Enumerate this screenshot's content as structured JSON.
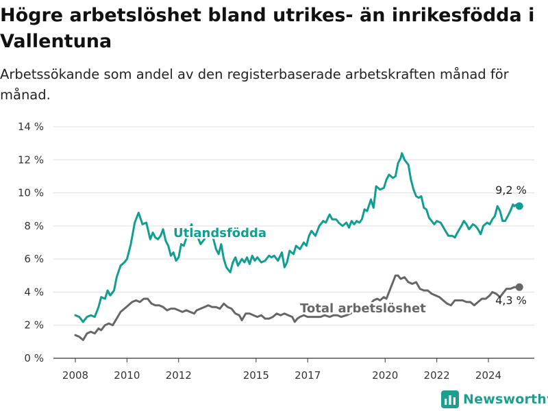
{
  "chart_data": {
    "type": "line",
    "title": "Högre arbetslöshet bland utrikes- än inrikesfödda i Vallentuna",
    "subtitle": "Arbetssökande som andel av den registerbaserade arbetskraften månad för månad.",
    "y_unit": "%",
    "ylim": [
      0,
      14
    ],
    "y_ticks": [
      0,
      2,
      4,
      6,
      8,
      10,
      12,
      14
    ],
    "y_tick_labels": [
      "0 %",
      "2 %",
      "4 %",
      "6 %",
      "8 %",
      "10 %",
      "12 %",
      "14 %"
    ],
    "x_range": [
      2007.5,
      2025.75
    ],
    "x_ticks": [
      2008,
      2010,
      2012,
      2015,
      2017,
      2020,
      2022,
      2024
    ],
    "x_tick_labels": [
      "2008",
      "2010",
      "2012",
      "2015",
      "2017",
      "2020",
      "2022",
      "2024"
    ],
    "grid": true,
    "legend": "inline labels",
    "series": [
      {
        "name": "Utlandsfödda",
        "color": "#0f9e8f",
        "end_label": "9,2 %",
        "points": [
          [
            2008.0,
            2.6
          ],
          [
            2008.15,
            2.5
          ],
          [
            2008.3,
            2.2
          ],
          [
            2008.45,
            2.5
          ],
          [
            2008.6,
            2.6
          ],
          [
            2008.75,
            2.5
          ],
          [
            2008.9,
            3.1
          ],
          [
            2009.0,
            3.7
          ],
          [
            2009.15,
            3.6
          ],
          [
            2009.25,
            4.1
          ],
          [
            2009.35,
            3.8
          ],
          [
            2009.5,
            4.1
          ],
          [
            2009.6,
            4.9
          ],
          [
            2009.75,
            5.6
          ],
          [
            2009.9,
            5.8
          ],
          [
            2010.0,
            6.0
          ],
          [
            2010.15,
            6.9
          ],
          [
            2010.3,
            8.2
          ],
          [
            2010.45,
            8.8
          ],
          [
            2010.6,
            8.1
          ],
          [
            2010.75,
            8.2
          ],
          [
            2010.9,
            7.2
          ],
          [
            2011.0,
            7.6
          ],
          [
            2011.1,
            7.3
          ],
          [
            2011.2,
            7.2
          ],
          [
            2011.3,
            7.4
          ],
          [
            2011.4,
            7.8
          ],
          [
            2011.5,
            7.1
          ],
          [
            2011.6,
            6.8
          ],
          [
            2011.7,
            6.2
          ],
          [
            2011.8,
            6.4
          ],
          [
            2011.9,
            5.9
          ],
          [
            2012.0,
            6.1
          ],
          [
            2012.1,
            6.9
          ],
          [
            2012.2,
            6.8
          ],
          [
            2012.35,
            7.5
          ],
          [
            2012.5,
            8.1
          ],
          [
            2012.6,
            7.3
          ],
          [
            2012.75,
            7.3
          ],
          [
            2012.85,
            6.9
          ],
          [
            2013.0,
            7.2
          ],
          [
            2013.15,
            7.6
          ],
          [
            2013.3,
            7.5
          ],
          [
            2013.45,
            6.6
          ],
          [
            2013.55,
            6.3
          ],
          [
            2013.65,
            6.9
          ],
          [
            2013.75,
            6.0
          ],
          [
            2013.85,
            5.5
          ],
          [
            2014.0,
            5.2
          ],
          [
            2014.1,
            5.8
          ],
          [
            2014.2,
            6.1
          ],
          [
            2014.3,
            5.6
          ],
          [
            2014.45,
            6.0
          ],
          [
            2014.55,
            5.8
          ],
          [
            2014.65,
            6.1
          ],
          [
            2014.75,
            5.7
          ],
          [
            2014.85,
            6.2
          ],
          [
            2014.95,
            5.9
          ],
          [
            2015.05,
            6.1
          ],
          [
            2015.2,
            5.8
          ],
          [
            2015.35,
            5.9
          ],
          [
            2015.5,
            6.2
          ],
          [
            2015.6,
            6.1
          ],
          [
            2015.7,
            6.2
          ],
          [
            2015.85,
            5.9
          ],
          [
            2016.0,
            6.4
          ],
          [
            2016.1,
            5.5
          ],
          [
            2016.2,
            5.8
          ],
          [
            2016.3,
            6.5
          ],
          [
            2016.45,
            6.3
          ],
          [
            2016.55,
            6.8
          ],
          [
            2016.7,
            6.6
          ],
          [
            2016.85,
            7.0
          ],
          [
            2016.95,
            6.8
          ],
          [
            2017.05,
            7.4
          ],
          [
            2017.15,
            7.7
          ],
          [
            2017.3,
            7.4
          ],
          [
            2017.45,
            8.0
          ],
          [
            2017.6,
            8.3
          ],
          [
            2017.7,
            8.2
          ],
          [
            2017.85,
            8.7
          ],
          [
            2017.95,
            8.4
          ],
          [
            2018.1,
            8.4
          ],
          [
            2018.2,
            8.2
          ],
          [
            2018.35,
            8.0
          ],
          [
            2018.5,
            8.2
          ],
          [
            2018.6,
            7.9
          ],
          [
            2018.7,
            8.3
          ],
          [
            2018.8,
            8.1
          ],
          [
            2018.9,
            8.3
          ],
          [
            2019.0,
            8.2
          ],
          [
            2019.1,
            8.4
          ],
          [
            2019.2,
            9.0
          ],
          [
            2019.3,
            8.9
          ],
          [
            2019.45,
            9.6
          ],
          [
            2019.55,
            9.1
          ],
          [
            2019.65,
            10.4
          ],
          [
            2019.8,
            10.2
          ],
          [
            2019.95,
            10.3
          ],
          [
            2020.05,
            10.8
          ],
          [
            2020.15,
            11.1
          ],
          [
            2020.3,
            10.9
          ],
          [
            2020.4,
            11.0
          ],
          [
            2020.5,
            11.8
          ],
          [
            2020.6,
            12.1
          ],
          [
            2020.65,
            12.4
          ],
          [
            2020.75,
            12.0
          ],
          [
            2020.9,
            11.7
          ],
          [
            2021.0,
            10.8
          ],
          [
            2021.1,
            10.2
          ],
          [
            2021.2,
            9.8
          ],
          [
            2021.3,
            9.7
          ],
          [
            2021.4,
            9.8
          ],
          [
            2021.5,
            9.1
          ],
          [
            2021.6,
            9.0
          ],
          [
            2021.7,
            8.5
          ],
          [
            2021.8,
            8.3
          ],
          [
            2021.9,
            8.1
          ],
          [
            2022.0,
            8.3
          ],
          [
            2022.15,
            8.2
          ],
          [
            2022.3,
            7.8
          ],
          [
            2022.45,
            7.4
          ],
          [
            2022.6,
            7.4
          ],
          [
            2022.7,
            7.3
          ],
          [
            2022.8,
            7.6
          ],
          [
            2022.95,
            8.0
          ],
          [
            2023.05,
            8.3
          ],
          [
            2023.15,
            8.1
          ],
          [
            2023.25,
            7.8
          ],
          [
            2023.4,
            8.1
          ],
          [
            2023.5,
            8.0
          ],
          [
            2023.6,
            7.8
          ],
          [
            2023.7,
            7.5
          ],
          [
            2023.8,
            8.0
          ],
          [
            2023.95,
            8.2
          ],
          [
            2024.05,
            8.1
          ],
          [
            2024.15,
            8.4
          ],
          [
            2024.25,
            8.6
          ],
          [
            2024.35,
            9.2
          ],
          [
            2024.45,
            8.9
          ],
          [
            2024.55,
            8.3
          ],
          [
            2024.65,
            8.3
          ],
          [
            2024.75,
            8.6
          ],
          [
            2024.85,
            8.9
          ],
          [
            2024.95,
            9.3
          ],
          [
            2025.0,
            9.2
          ],
          [
            2025.1,
            9.3
          ],
          [
            2025.2,
            9.2
          ]
        ]
      },
      {
        "name": "Total arbetslöshet",
        "color": "#666666",
        "end_label": "4,3 %",
        "points": [
          [
            2008.0,
            1.4
          ],
          [
            2008.15,
            1.3
          ],
          [
            2008.3,
            1.1
          ],
          [
            2008.45,
            1.5
          ],
          [
            2008.6,
            1.6
          ],
          [
            2008.75,
            1.5
          ],
          [
            2008.9,
            1.8
          ],
          [
            2009.0,
            1.7
          ],
          [
            2009.15,
            2.0
          ],
          [
            2009.3,
            2.1
          ],
          [
            2009.45,
            2.0
          ],
          [
            2009.6,
            2.4
          ],
          [
            2009.75,
            2.8
          ],
          [
            2009.9,
            3.0
          ],
          [
            2010.05,
            3.2
          ],
          [
            2010.2,
            3.4
          ],
          [
            2010.35,
            3.5
          ],
          [
            2010.5,
            3.4
          ],
          [
            2010.65,
            3.6
          ],
          [
            2010.8,
            3.6
          ],
          [
            2010.95,
            3.3
          ],
          [
            2011.1,
            3.2
          ],
          [
            2011.25,
            3.2
          ],
          [
            2011.4,
            3.1
          ],
          [
            2011.55,
            2.9
          ],
          [
            2011.7,
            3.0
          ],
          [
            2011.85,
            3.0
          ],
          [
            2012.0,
            2.9
          ],
          [
            2012.15,
            2.8
          ],
          [
            2012.3,
            2.9
          ],
          [
            2012.45,
            2.8
          ],
          [
            2012.6,
            2.7
          ],
          [
            2012.7,
            2.9
          ],
          [
            2012.85,
            3.0
          ],
          [
            2013.0,
            3.1
          ],
          [
            2013.15,
            3.2
          ],
          [
            2013.3,
            3.1
          ],
          [
            2013.45,
            3.1
          ],
          [
            2013.6,
            3.0
          ],
          [
            2013.75,
            3.3
          ],
          [
            2013.9,
            3.1
          ],
          [
            2014.05,
            3.0
          ],
          [
            2014.2,
            2.7
          ],
          [
            2014.35,
            2.6
          ],
          [
            2014.45,
            2.3
          ],
          [
            2014.6,
            2.7
          ],
          [
            2014.75,
            2.7
          ],
          [
            2014.9,
            2.6
          ],
          [
            2015.05,
            2.5
          ],
          [
            2015.2,
            2.6
          ],
          [
            2015.35,
            2.4
          ],
          [
            2015.5,
            2.4
          ],
          [
            2015.65,
            2.5
          ],
          [
            2015.8,
            2.7
          ],
          [
            2015.95,
            2.6
          ],
          [
            2016.1,
            2.7
          ],
          [
            2016.25,
            2.6
          ],
          [
            2016.4,
            2.5
          ],
          [
            2016.5,
            2.2
          ],
          [
            2016.6,
            2.4
          ],
          [
            2016.7,
            2.5
          ],
          [
            2016.85,
            2.6
          ],
          [
            2017.0,
            2.5
          ],
          [
            2017.15,
            2.5
          ],
          [
            2017.3,
            2.5
          ],
          [
            2017.5,
            2.5
          ],
          [
            2017.65,
            2.6
          ],
          [
            2017.85,
            2.5
          ],
          [
            2018.0,
            2.6
          ],
          [
            2018.15,
            2.6
          ],
          [
            2018.3,
            2.5
          ],
          [
            2018.5,
            2.6
          ],
          [
            2018.65,
            2.7
          ],
          [
            2018.8,
            2.8
          ],
          [
            2018.95,
            2.9
          ],
          [
            2019.1,
            3.1
          ],
          [
            2019.25,
            3.0
          ],
          [
            2019.4,
            3.2
          ],
          [
            2019.55,
            3.5
          ],
          [
            2019.7,
            3.6
          ],
          [
            2019.8,
            3.5
          ],
          [
            2019.95,
            3.7
          ],
          [
            2020.05,
            3.6
          ],
          [
            2020.15,
            4.0
          ],
          [
            2020.3,
            4.6
          ],
          [
            2020.4,
            5.0
          ],
          [
            2020.5,
            5.0
          ],
          [
            2020.6,
            4.8
          ],
          [
            2020.75,
            4.9
          ],
          [
            2020.9,
            4.6
          ],
          [
            2021.05,
            4.5
          ],
          [
            2021.2,
            4.6
          ],
          [
            2021.35,
            4.2
          ],
          [
            2021.5,
            4.1
          ],
          [
            2021.65,
            4.1
          ],
          [
            2021.8,
            3.9
          ],
          [
            2021.95,
            3.8
          ],
          [
            2022.1,
            3.7
          ],
          [
            2022.25,
            3.5
          ],
          [
            2022.4,
            3.3
          ],
          [
            2022.55,
            3.2
          ],
          [
            2022.7,
            3.5
          ],
          [
            2022.85,
            3.5
          ],
          [
            2023.0,
            3.5
          ],
          [
            2023.15,
            3.4
          ],
          [
            2023.3,
            3.4
          ],
          [
            2023.45,
            3.2
          ],
          [
            2023.6,
            3.4
          ],
          [
            2023.75,
            3.6
          ],
          [
            2023.9,
            3.6
          ],
          [
            2024.05,
            3.8
          ],
          [
            2024.15,
            4.0
          ],
          [
            2024.3,
            3.9
          ],
          [
            2024.45,
            3.7
          ],
          [
            2024.55,
            3.9
          ],
          [
            2024.7,
            4.2
          ],
          [
            2024.85,
            4.2
          ],
          [
            2025.0,
            4.3
          ],
          [
            2025.1,
            4.3
          ],
          [
            2025.2,
            4.3
          ]
        ]
      }
    ]
  },
  "branding": {
    "name": "Newsworthy",
    "icon": "newsworthy-logo-icon",
    "color": "#1d9e8f"
  }
}
